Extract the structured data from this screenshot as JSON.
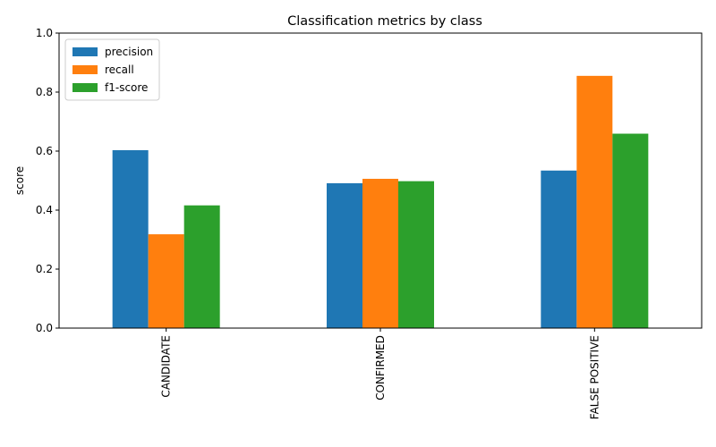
{
  "chart_data": {
    "type": "bar",
    "title": "Classification metrics by class",
    "xlabel": "",
    "ylabel": "score",
    "ylim": [
      0,
      1.0
    ],
    "yticks": [
      "0.0",
      "0.2",
      "0.4",
      "0.6",
      "0.8",
      "1.0"
    ],
    "categories": [
      "CANDIDATE",
      "CONFIRMED",
      "FALSE POSITIVE"
    ],
    "series": [
      {
        "name": "precision",
        "color": "#1f77b4",
        "values": [
          0.603,
          0.491,
          0.534
        ]
      },
      {
        "name": "recall",
        "color": "#ff7f0e",
        "values": [
          0.318,
          0.506,
          0.855
        ]
      },
      {
        "name": "f1-score",
        "color": "#2ca02c",
        "values": [
          0.416,
          0.498,
          0.659
        ]
      }
    ],
    "legend_position": "upper left",
    "grid": false
  }
}
